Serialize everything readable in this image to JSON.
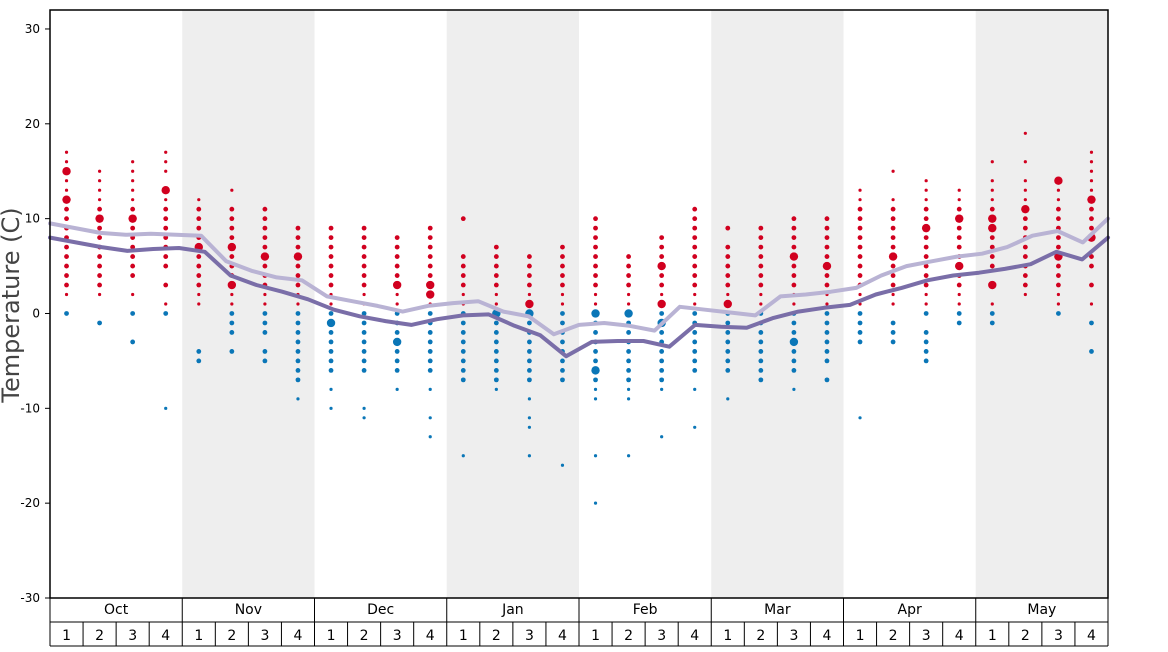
{
  "chart_data": {
    "type": "scatter",
    "title": "",
    "ylabel": "Temperature (C)",
    "xlabel": "",
    "ylim": [
      -30,
      32
    ],
    "yticks": [
      30,
      20,
      10,
      0,
      -10,
      -20,
      -30
    ],
    "grid": false,
    "months": [
      "Oct",
      "Nov",
      "Dec",
      "Jan",
      "Feb",
      "Mar",
      "Apr",
      "May"
    ],
    "weeks": [
      "1",
      "2",
      "3",
      "4"
    ],
    "colors": {
      "warm_points": "#d1001f",
      "cold_points": "#0a76b7",
      "upper_line": "#b9b3d4",
      "lower_line": "#7a6ea8",
      "shaded_month": "#eeeeee"
    },
    "series": [
      {
        "values": [
          9.5,
          9.0,
          8.5,
          8.3,
          8.4,
          8.3,
          8.2,
          5.5,
          4.5,
          3.8,
          3.5,
          1.8,
          1.3,
          0.8,
          0.2,
          0.8,
          1.1,
          1.3,
          0.2,
          -0.3,
          -2.2,
          -1.2,
          -1.0,
          -1.3,
          -1.8,
          0.7,
          0.4,
          0.1,
          -0.2,
          1.8,
          2.0,
          2.3,
          2.7,
          4.0,
          5.0,
          5.5,
          6.0,
          6.3,
          7.0,
          8.2,
          8.7,
          7.5,
          10.0
        ]
      },
      {
        "values": [
          8.0,
          7.5,
          7.0,
          6.6,
          6.8,
          6.9,
          6.5,
          4.0,
          3.0,
          2.3,
          1.5,
          0.4,
          -0.3,
          -0.8,
          -1.2,
          -0.6,
          -0.2,
          -0.1,
          -1.3,
          -2.3,
          -4.5,
          -3.0,
          -2.9,
          -2.9,
          -3.5,
          -1.2,
          -1.4,
          -1.5,
          -0.5,
          0.2,
          0.6,
          0.9,
          2.0,
          2.7,
          3.5,
          4.0,
          4.3,
          4.7,
          5.2,
          6.5,
          5.7,
          8.0
        ]
      }
    ],
    "points": [
      {
        "m": 0,
        "w": 0,
        "warm": [
          15,
          12,
          9,
          6,
          5,
          3,
          2,
          17,
          16,
          14,
          13,
          11,
          10,
          8,
          7,
          4
        ],
        "cold": [
          0
        ],
        "big": [
          15,
          12
        ]
      },
      {
        "m": 0,
        "w": 1,
        "warm": [
          15,
          14,
          12,
          10,
          8,
          5,
          3,
          2,
          13,
          11,
          9,
          7,
          6,
          4
        ],
        "cold": [
          -1
        ],
        "big": [
          10
        ]
      },
      {
        "m": 0,
        "w": 2,
        "warm": [
          16,
          14,
          12,
          10,
          8,
          6,
          5,
          4,
          2,
          15,
          13,
          11,
          9,
          7
        ],
        "cold": [
          0,
          -3
        ],
        "big": [
          10
        ]
      },
      {
        "m": 0,
        "w": 3,
        "warm": [
          17,
          16,
          15,
          13,
          12,
          11,
          10,
          9,
          8,
          7,
          6,
          5,
          3,
          1
        ],
        "cold": [
          0,
          -10
        ],
        "big": [
          13
        ]
      },
      {
        "m": 1,
        "w": 0,
        "warm": [
          12,
          11,
          10,
          9,
          8,
          7,
          6,
          5,
          4,
          3,
          2,
          1
        ],
        "cold": [
          -4,
          -5
        ],
        "big": [
          7
        ]
      },
      {
        "m": 1,
        "w": 1,
        "warm": [
          13,
          11,
          10,
          9,
          8,
          7,
          6,
          5,
          4,
          3,
          2,
          1
        ],
        "cold": [
          0,
          -1,
          -2,
          -4
        ],
        "big": [
          7,
          3
        ]
      },
      {
        "m": 1,
        "w": 2,
        "warm": [
          11,
          10,
          9,
          8,
          7,
          6,
          5,
          4,
          3,
          2,
          1
        ],
        "cold": [
          0,
          -1,
          -2,
          -4,
          -5
        ],
        "big": [
          6
        ]
      },
      {
        "m": 1,
        "w": 3,
        "warm": [
          9,
          8,
          7,
          6,
          5,
          4,
          3,
          2,
          1
        ],
        "cold": [
          0,
          -1,
          -2,
          -3,
          -4,
          -5,
          -6,
          -7,
          -9
        ],
        "big": [
          6
        ]
      },
      {
        "m": 2,
        "w": 0,
        "warm": [
          9,
          8,
          7,
          6,
          5,
          4,
          3,
          2,
          1
        ],
        "cold": [
          0,
          -1,
          -2,
          -3,
          -4,
          -5,
          -6,
          -8,
          -10
        ],
        "big": [
          -1
        ]
      },
      {
        "m": 2,
        "w": 1,
        "warm": [
          9,
          8,
          7,
          6,
          5,
          4,
          3,
          2,
          1
        ],
        "cold": [
          0,
          -1,
          -2,
          -3,
          -4,
          -5,
          -6,
          -10,
          -11
        ],
        "big": []
      },
      {
        "m": 2,
        "w": 2,
        "warm": [
          8,
          7,
          6,
          5,
          4,
          3,
          2,
          1
        ],
        "cold": [
          0,
          -1,
          -2,
          -3,
          -4,
          -5,
          -6,
          -8
        ],
        "big": [
          3,
          -3
        ]
      },
      {
        "m": 2,
        "w": 3,
        "warm": [
          9,
          8,
          7,
          6,
          5,
          4,
          3,
          2,
          1
        ],
        "cold": [
          0,
          -1,
          -2,
          -3,
          -4,
          -5,
          -6,
          -8,
          -11,
          -13
        ],
        "big": [
          3,
          2
        ]
      },
      {
        "m": 3,
        "w": 0,
        "warm": [
          10,
          6,
          5,
          4,
          3,
          2,
          1
        ],
        "cold": [
          0,
          -1,
          -2,
          -3,
          -4,
          -5,
          -6,
          -7,
          -15
        ],
        "big": []
      },
      {
        "m": 3,
        "w": 1,
        "warm": [
          7,
          6,
          5,
          4,
          3,
          2,
          1
        ],
        "cold": [
          0,
          -1,
          -2,
          -3,
          -4,
          -5,
          -6,
          -7,
          -8
        ],
        "big": [
          0
        ]
      },
      {
        "m": 3,
        "w": 2,
        "warm": [
          6,
          5,
          4,
          3,
          2,
          1
        ],
        "cold": [
          0,
          -1,
          -2,
          -3,
          -4,
          -5,
          -6,
          -7,
          -9,
          -11,
          -12,
          -15
        ],
        "big": [
          1,
          0
        ]
      },
      {
        "m": 3,
        "w": 3,
        "warm": [
          7,
          6,
          5,
          4,
          3,
          2,
          1
        ],
        "cold": [
          0,
          -1,
          -2,
          -3,
          -4,
          -5,
          -6,
          -7,
          -16
        ],
        "big": []
      },
      {
        "m": 4,
        "w": 0,
        "warm": [
          10,
          9,
          8,
          7,
          6,
          5,
          4,
          3,
          2,
          1
        ],
        "cold": [
          0,
          -1,
          -2,
          -3,
          -4,
          -5,
          -6,
          -7,
          -8,
          -9,
          -15,
          -20
        ],
        "big": [
          0,
          -6
        ]
      },
      {
        "m": 4,
        "w": 1,
        "warm": [
          6,
          5,
          4,
          3,
          2,
          1
        ],
        "cold": [
          0,
          -1,
          -2,
          -3,
          -4,
          -5,
          -6,
          -7,
          -8,
          -9,
          -15
        ],
        "big": [
          0
        ]
      },
      {
        "m": 4,
        "w": 2,
        "warm": [
          8,
          7,
          6,
          5,
          4,
          3,
          2,
          1
        ],
        "cold": [
          0,
          -1,
          -2,
          -3,
          -4,
          -5,
          -6,
          -7,
          -8,
          -13
        ],
        "big": [
          5,
          1,
          -1
        ]
      },
      {
        "m": 4,
        "w": 3,
        "warm": [
          11,
          10,
          9,
          8,
          7,
          6,
          5,
          4,
          3,
          2,
          1
        ],
        "cold": [
          0,
          -1,
          -2,
          -3,
          -4,
          -5,
          -6,
          -8,
          -12
        ],
        "big": []
      },
      {
        "m": 5,
        "w": 0,
        "warm": [
          9,
          7,
          6,
          5,
          4,
          3,
          2,
          1
        ],
        "cold": [
          0,
          -1,
          -2,
          -3,
          -4,
          -5,
          -6,
          -9
        ],
        "big": [
          1
        ]
      },
      {
        "m": 5,
        "w": 1,
        "warm": [
          9,
          8,
          7,
          6,
          5,
          4,
          3,
          2,
          1
        ],
        "cold": [
          0,
          -1,
          -2,
          -3,
          -4,
          -5,
          -6,
          -7
        ],
        "big": []
      },
      {
        "m": 5,
        "w": 2,
        "warm": [
          10,
          9,
          8,
          7,
          6,
          5,
          4,
          3,
          2,
          1
        ],
        "cold": [
          0,
          -1,
          -2,
          -3,
          -4,
          -5,
          -6,
          -8
        ],
        "big": [
          6,
          -3
        ]
      },
      {
        "m": 5,
        "w": 3,
        "warm": [
          10,
          9,
          8,
          7,
          6,
          5,
          4,
          3,
          2,
          1
        ],
        "cold": [
          0,
          -1,
          -2,
          -3,
          -4,
          -5,
          -7
        ],
        "big": [
          5
        ]
      },
      {
        "m": 6,
        "w": 0,
        "warm": [
          13,
          12,
          11,
          10,
          9,
          8,
          7,
          6,
          5,
          4,
          3,
          2,
          1
        ],
        "cold": [
          0,
          -1,
          -2,
          -3,
          -11
        ],
        "big": []
      },
      {
        "m": 6,
        "w": 1,
        "warm": [
          15,
          12,
          11,
          10,
          9,
          8,
          7,
          6,
          5,
          4,
          3,
          2,
          1
        ],
        "cold": [
          -1,
          -2,
          -3
        ],
        "big": [
          6
        ]
      },
      {
        "m": 6,
        "w": 2,
        "warm": [
          14,
          13,
          12,
          11,
          10,
          9,
          8,
          7,
          6,
          5,
          4,
          3,
          2,
          1
        ],
        "cold": [
          0,
          -2,
          -3,
          -4,
          -5
        ],
        "big": [
          9
        ]
      },
      {
        "m": 6,
        "w": 3,
        "warm": [
          13,
          12,
          11,
          10,
          9,
          8,
          7,
          6,
          5,
          4,
          3,
          2,
          1
        ],
        "cold": [
          0,
          -1
        ],
        "big": [
          10,
          5
        ]
      },
      {
        "m": 7,
        "w": 0,
        "warm": [
          16,
          14,
          13,
          12,
          11,
          10,
          9,
          8,
          7,
          6,
          5,
          3,
          1
        ],
        "cold": [
          0,
          -1
        ],
        "big": [
          10,
          9,
          3
        ]
      },
      {
        "m": 7,
        "w": 1,
        "warm": [
          19,
          16,
          14,
          13,
          12,
          11,
          10,
          9,
          8,
          7,
          6,
          5,
          4,
          3,
          2
        ],
        "cold": [],
        "big": [
          11
        ]
      },
      {
        "m": 7,
        "w": 2,
        "warm": [
          14,
          13,
          12,
          11,
          10,
          9,
          8,
          7,
          6,
          5,
          4,
          3,
          2,
          1
        ],
        "cold": [
          0
        ],
        "big": [
          14,
          6
        ]
      },
      {
        "m": 7,
        "w": 3,
        "warm": [
          17,
          16,
          15,
          14,
          13,
          12,
          11,
          10,
          9,
          8,
          6,
          5,
          3,
          1
        ],
        "cold": [
          -1,
          -4
        ],
        "big": [
          12,
          8
        ]
      }
    ]
  }
}
